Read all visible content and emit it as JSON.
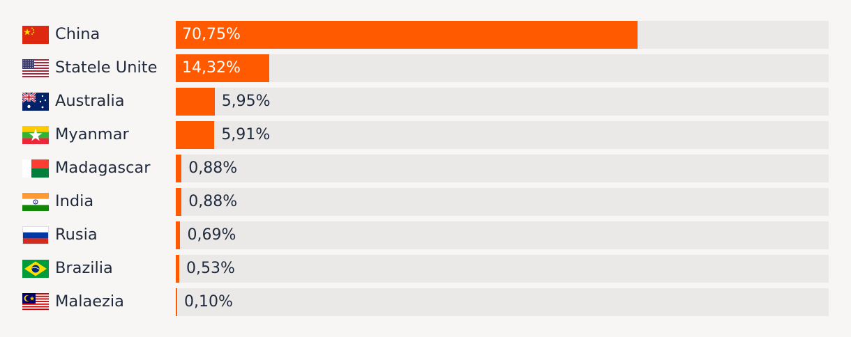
{
  "colors": {
    "bar": "#ff5a00",
    "track": "#ebe9e7",
    "background": "#f8f6f5",
    "text": "#1f2a3d"
  },
  "chart_data": {
    "type": "bar",
    "orientation": "horizontal",
    "xlim": [
      0,
      100
    ],
    "categories": [
      "China",
      "Statele Unite",
      "Australia",
      "Myanmar",
      "Madagascar",
      "India",
      "Rusia",
      "Brazilia",
      "Malaezia"
    ],
    "values": [
      70.75,
      14.32,
      5.95,
      5.91,
      0.88,
      0.88,
      0.69,
      0.53,
      0.1
    ],
    "value_labels": [
      "70,75%",
      "14,32%",
      "5,95%",
      "5,91%",
      "0,88%",
      "0,88%",
      "0,69%",
      "0,53%",
      "0,10%"
    ],
    "flag_icons": [
      "flag-china-icon",
      "flag-usa-icon",
      "flag-australia-icon",
      "flag-myanmar-icon",
      "flag-madagascar-icon",
      "flag-india-icon",
      "flag-russia-icon",
      "flag-brazil-icon",
      "flag-malaysia-icon"
    ]
  }
}
